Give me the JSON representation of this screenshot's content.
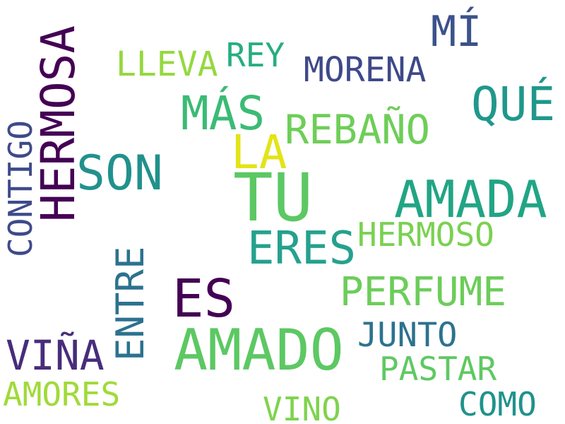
{
  "words": [
    {
      "text": "TU",
      "color": "#5cc863"
    },
    {
      "text": "AMADO",
      "color": "#5cc863"
    },
    {
      "text": "AMADA",
      "color": "#21a585"
    },
    {
      "text": "HERMOSA",
      "color": "#440154"
    },
    {
      "text": "ES",
      "color": "#440154"
    },
    {
      "text": "SON",
      "color": "#21918c"
    },
    {
      "text": "ERES",
      "color": "#25a18e"
    },
    {
      "text": "MÁS",
      "color": "#3bbb75"
    },
    {
      "text": "LA",
      "color": "#e2e418"
    },
    {
      "text": "QUÉ",
      "color": "#1f988b"
    },
    {
      "text": "PERFUME",
      "color": "#6ccd5a"
    },
    {
      "text": "REBAÑO",
      "color": "#6ece58"
    },
    {
      "text": "ENTRE",
      "color": "#2c728e"
    },
    {
      "text": "VIÑA",
      "color": "#472d7b"
    },
    {
      "text": "MÍ",
      "color": "#3b528b"
    },
    {
      "text": "CONTIGO",
      "color": "#3e4a89"
    },
    {
      "text": "MORENA",
      "color": "#3e4989"
    },
    {
      "text": "LLEVA",
      "color": "#95d840"
    },
    {
      "text": "REY",
      "color": "#27ad81"
    },
    {
      "text": "HERMOSO",
      "color": "#7ad151"
    },
    {
      "text": "JUNTO",
      "color": "#2c728e"
    },
    {
      "text": "PASTAR",
      "color": "#5ec962"
    },
    {
      "text": "AMORES",
      "color": "#a0da39"
    },
    {
      "text": "VINO",
      "color": "#7fd34e"
    },
    {
      "text": "COMO",
      "color": "#20928c"
    }
  ]
}
